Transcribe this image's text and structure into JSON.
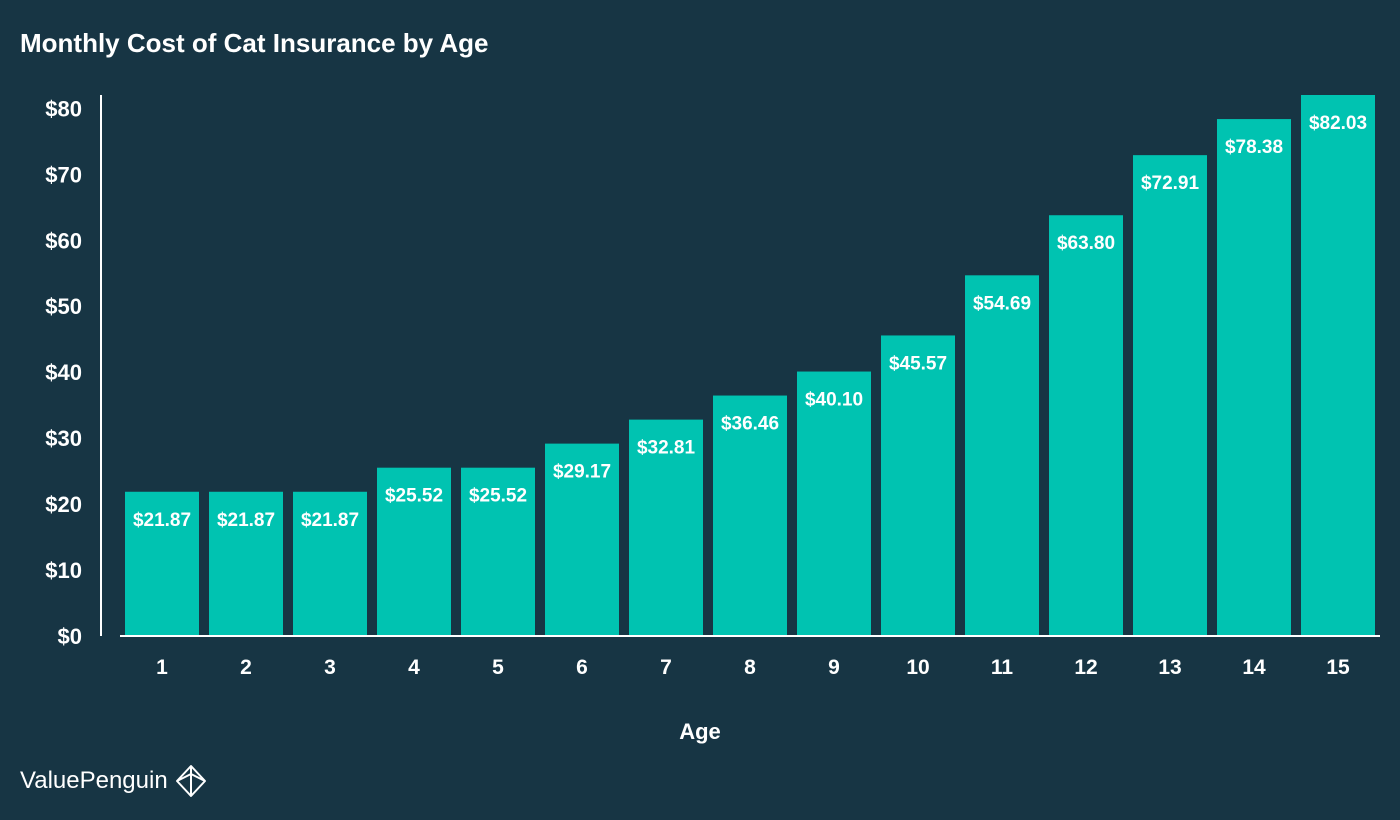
{
  "chart_data": {
    "type": "bar",
    "title": "Monthly Cost of Cat Insurance by Age",
    "xlabel": "Age",
    "ylabel": "",
    "categories": [
      "1",
      "2",
      "3",
      "4",
      "5",
      "6",
      "7",
      "8",
      "9",
      "10",
      "11",
      "12",
      "13",
      "14",
      "15"
    ],
    "values": [
      21.87,
      21.87,
      21.87,
      25.52,
      25.52,
      29.17,
      32.81,
      36.46,
      40.1,
      45.57,
      54.69,
      63.8,
      72.91,
      78.38,
      82.03
    ],
    "data_labels": [
      "$21.87",
      "$21.87",
      "$21.87",
      "$25.52",
      "$25.52",
      "$29.17",
      "$32.81",
      "$36.46",
      "$40.10",
      "$45.57",
      "$54.69",
      "$63.80",
      "$72.91",
      "$78.38",
      "$82.03"
    ],
    "ylim": [
      0,
      82.03
    ],
    "yticks": [
      0,
      10,
      20,
      30,
      40,
      50,
      60,
      70,
      80
    ],
    "ytick_labels": [
      "$0",
      "$10",
      "$20",
      "$30",
      "$40",
      "$50",
      "$60",
      "$70",
      "$80"
    ],
    "grid": false,
    "legend": "none",
    "colors": {
      "background": "#173544",
      "bar": "#00c3b1",
      "text": "#ffffff",
      "axis": "#ffffff"
    }
  },
  "brand": {
    "name": "ValuePenguin",
    "icon": "valuepenguin-logo-icon"
  }
}
